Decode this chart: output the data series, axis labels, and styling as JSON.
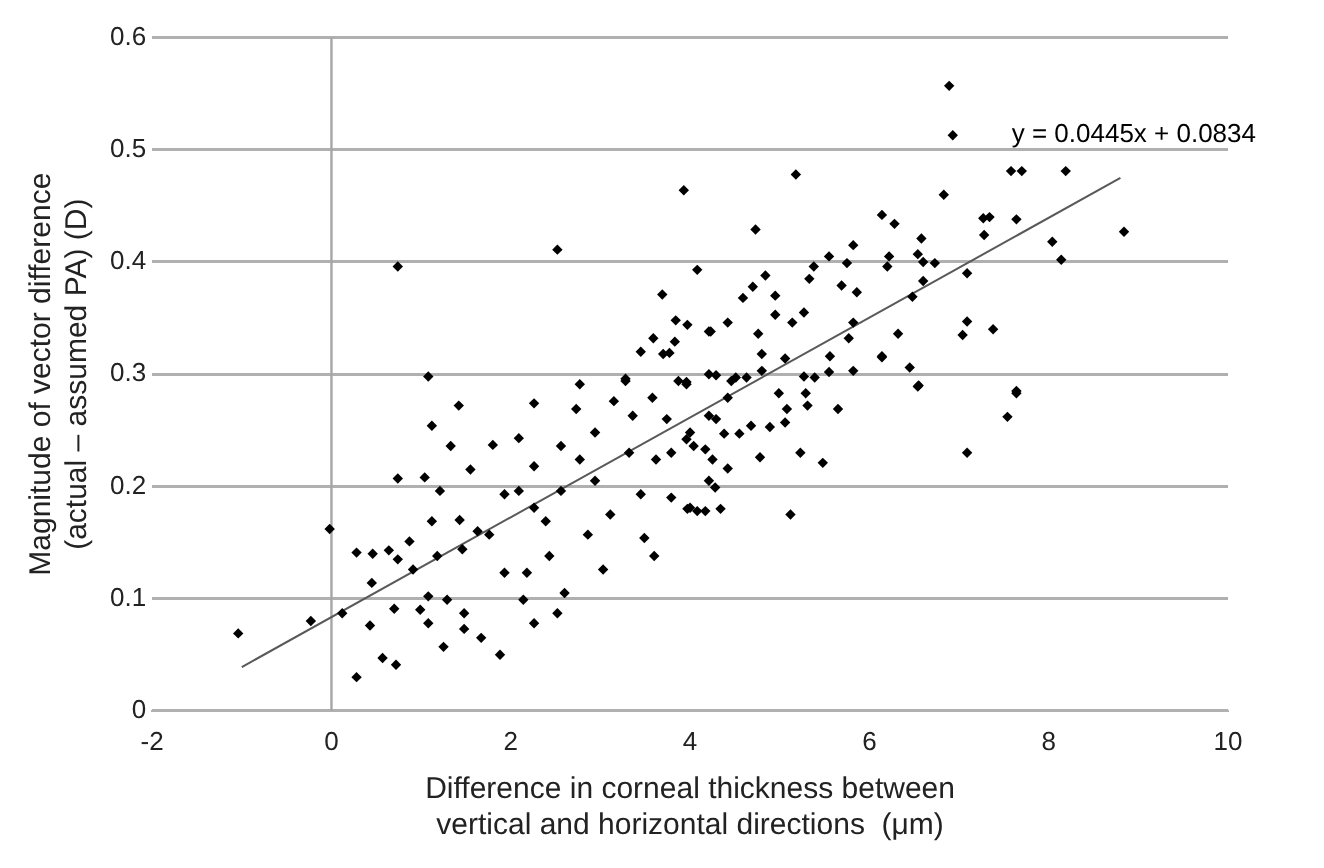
{
  "chart_data": {
    "type": "scatter",
    "xlabel": "Difference in corneal thickness between\nvertical and horizontal directions  (μm)",
    "ylabel": "Magnitude of vector difference\n(actual – assumed PA) (D)",
    "xlim": [
      -2,
      10
    ],
    "xticks": [
      -2,
      0,
      2,
      4,
      6,
      8,
      10
    ],
    "ylim": [
      0,
      0.6
    ],
    "yticks": [
      0,
      0.1,
      0.2,
      0.3,
      0.4,
      0.5,
      0.6
    ],
    "grid": "y",
    "legend": false,
    "marker": "diamond",
    "ref_lines": [
      {
        "axis": "x",
        "value": 0,
        "color": "#a6a6a6"
      }
    ],
    "annotations": [
      "y = 0.0445x + 0.0834"
    ],
    "series": [
      {
        "color": "#000000",
        "x": [
          3.93,
          2.52,
          0.74,
          4.08,
          3.69,
          3.84,
          3.97,
          4.23,
          3.59,
          3.83,
          3.45,
          3.77,
          1.08,
          2.77,
          3.28,
          6.89,
          6.93,
          5.18,
          7.58,
          7.7,
          8.19,
          6.83,
          6.14,
          6.28,
          4.73,
          7.27,
          7.34,
          7.64,
          7.28,
          8.84,
          8.04,
          8.14,
          6.58,
          5.82,
          5.55,
          5.38,
          5.75,
          6.22,
          6.2,
          6.54,
          6.6,
          6.73,
          4.84,
          7.09,
          5.33,
          6.6,
          4.7,
          5.69,
          6.48,
          4.59,
          4.95,
          5.86,
          5.27,
          5.14,
          5.82,
          7.09,
          7.04,
          7.38,
          4.21,
          4.42,
          4.76,
          5.77,
          6.32,
          4.95,
          4.8,
          5.06,
          5.56,
          6.14,
          6.45,
          5.82,
          5.55,
          3.96,
          4.29,
          4.51,
          5.27,
          6.54,
          7.64,
          -1.04,
          -0.23,
          -0.02,
          0.12,
          0.28,
          0.28,
          0.46,
          0.43,
          0.45,
          0.57,
          0.72,
          0.64,
          0.74,
          0.7,
          0.74,
          0.87,
          0.91,
          0.99,
          1.04,
          1.12,
          1.12,
          1.08,
          1.08,
          1.21,
          1.18,
          1.29,
          1.25,
          1.33,
          1.42,
          1.43,
          1.46,
          1.48,
          1.48,
          1.55,
          1.63,
          1.67,
          1.76,
          1.8,
          1.88,
          1.93,
          1.93,
          2.09,
          2.09,
          2.14,
          2.18,
          2.26,
          2.26,
          2.26,
          2.26,
          2.39,
          2.43,
          2.52,
          2.56,
          2.56,
          2.6,
          2.73,
          2.77,
          2.86,
          2.94,
          2.94,
          3.03,
          3.11,
          3.15,
          3.28,
          3.32,
          3.36,
          3.45,
          3.49,
          3.58,
          3.62,
          3.6,
          3.7,
          3.74,
          3.79,
          3.96,
          4.0,
          4.0,
          4.17,
          4.21,
          4.25,
          3.79,
          3.97,
          4.08,
          4.34,
          4.28,
          4.21,
          4.42,
          5.12,
          5.23,
          5.48,
          4.78,
          5.06,
          5.08,
          5.31,
          5.65,
          5.29,
          4.99,
          4.68,
          4.89,
          4.55,
          4.38,
          4.17,
          4.04,
          3.96,
          4.29,
          5.39,
          6.14,
          6.55,
          7.09,
          7.54,
          7.64,
          4.42,
          4.46,
          4.63,
          4.21,
          4.8,
          3.87
        ],
        "values": [
          0.464,
          0.411,
          0.396,
          0.393,
          0.371,
          0.348,
          0.344,
          0.338,
          0.332,
          0.329,
          0.32,
          0.319,
          0.298,
          0.291,
          0.296,
          0.557,
          0.513,
          0.478,
          0.481,
          0.481,
          0.481,
          0.46,
          0.442,
          0.434,
          0.429,
          0.439,
          0.44,
          0.438,
          0.424,
          0.427,
          0.418,
          0.402,
          0.421,
          0.415,
          0.405,
          0.396,
          0.399,
          0.405,
          0.396,
          0.407,
          0.4,
          0.399,
          0.388,
          0.39,
          0.385,
          0.383,
          0.378,
          0.379,
          0.369,
          0.368,
          0.37,
          0.373,
          0.355,
          0.346,
          0.346,
          0.347,
          0.335,
          0.34,
          0.338,
          0.346,
          0.336,
          0.332,
          0.336,
          0.353,
          0.318,
          0.314,
          0.316,
          0.316,
          0.306,
          0.303,
          0.302,
          0.293,
          0.299,
          0.297,
          0.298,
          0.289,
          0.285,
          0.069,
          0.08,
          0.162,
          0.087,
          0.03,
          0.141,
          0.14,
          0.076,
          0.114,
          0.047,
          0.041,
          0.143,
          0.135,
          0.091,
          0.207,
          0.151,
          0.126,
          0.09,
          0.208,
          0.254,
          0.169,
          0.102,
          0.078,
          0.196,
          0.138,
          0.099,
          0.057,
          0.236,
          0.272,
          0.17,
          0.144,
          0.087,
          0.073,
          0.215,
          0.16,
          0.065,
          0.157,
          0.237,
          0.05,
          0.193,
          0.123,
          0.243,
          0.196,
          0.099,
          0.123,
          0.274,
          0.218,
          0.181,
          0.078,
          0.169,
          0.138,
          0.087,
          0.236,
          0.196,
          0.105,
          0.269,
          0.224,
          0.157,
          0.248,
          0.205,
          0.126,
          0.175,
          0.276,
          0.294,
          0.23,
          0.263,
          0.193,
          0.154,
          0.279,
          0.224,
          0.138,
          0.318,
          0.26,
          0.23,
          0.291,
          0.248,
          0.181,
          0.178,
          0.263,
          0.224,
          0.19,
          0.18,
          0.178,
          0.18,
          0.199,
          0.205,
          0.216,
          0.175,
          0.23,
          0.221,
          0.226,
          0.257,
          0.269,
          0.272,
          0.269,
          0.283,
          0.283,
          0.254,
          0.253,
          0.247,
          0.247,
          0.233,
          0.236,
          0.242,
          0.26,
          0.297,
          0.315,
          0.29,
          0.23,
          0.262,
          0.283,
          0.279,
          0.294,
          0.297,
          0.3,
          0.303,
          0.294
        ]
      },
      {
        "type": "line",
        "color": "#595959",
        "marker": "none",
        "x": [
          -1,
          8.8
        ],
        "values": [
          0.039,
          0.475
        ]
      }
    ]
  }
}
